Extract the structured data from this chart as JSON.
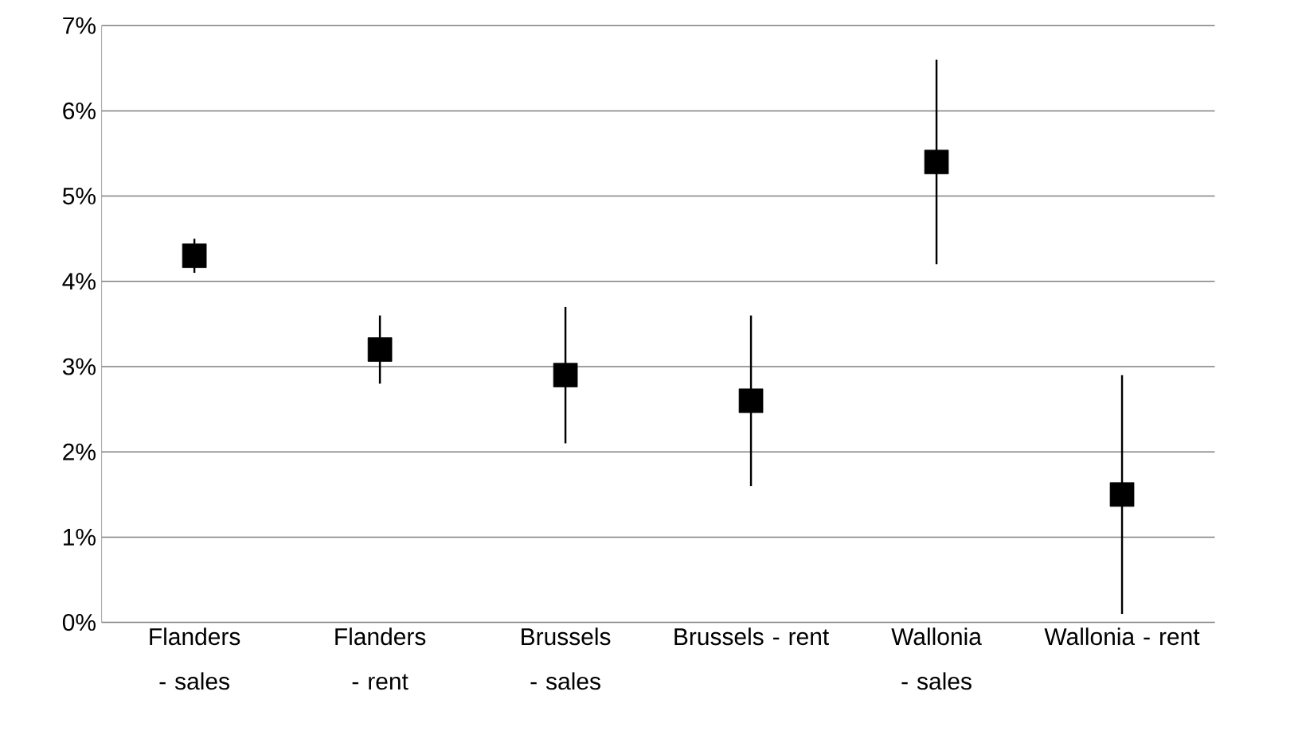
{
  "chart_data": {
    "type": "scatter",
    "categories": [
      "Flanders - sales",
      "Flanders - rent",
      "Brussels - sales",
      "Brussels - rent",
      "Wallonia - sales",
      "Wallonia - rent"
    ],
    "values": [
      4.3,
      3.2,
      2.9,
      2.6,
      5.4,
      1.5
    ],
    "errors": [
      [
        4.1,
        4.5
      ],
      [
        2.8,
        3.6
      ],
      [
        2.1,
        3.7
      ],
      [
        1.6,
        3.6
      ],
      [
        4.2,
        6.6
      ],
      [
        0.1,
        2.9
      ]
    ],
    "color": "#000000",
    "marker": "square",
    "ylim": [
      0,
      7
    ],
    "yticks": [
      {
        "value": 0,
        "label": "0%"
      },
      {
        "value": 1,
        "label": "1%"
      },
      {
        "value": 2,
        "label": "2%"
      },
      {
        "value": 3,
        "label": "3%"
      },
      {
        "value": 4,
        "label": "4%"
      },
      {
        "value": 5,
        "label": "5%"
      },
      {
        "value": 6,
        "label": "6%"
      },
      {
        "value": 7,
        "label": "7%"
      }
    ],
    "grid": "y"
  }
}
